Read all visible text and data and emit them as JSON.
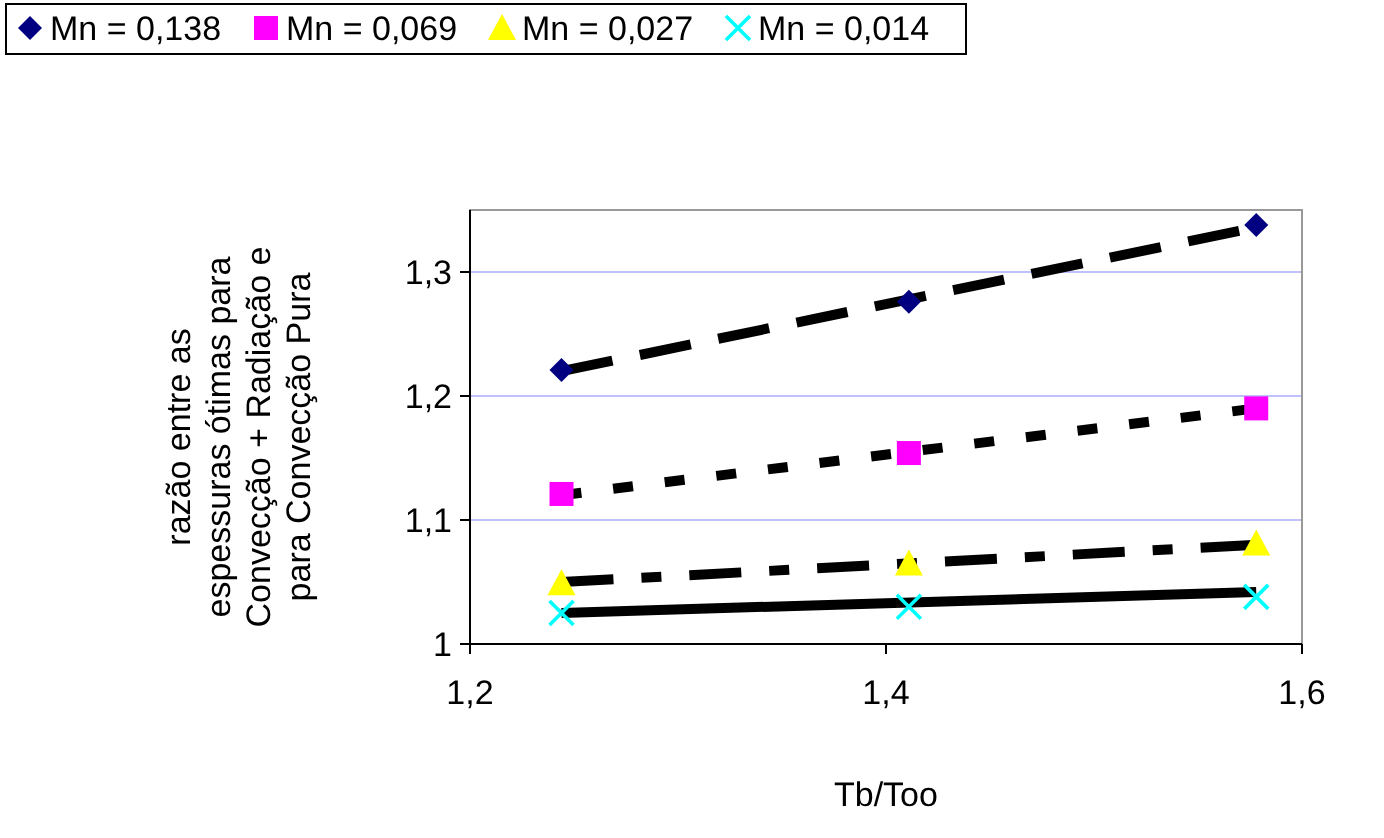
{
  "chart_data": {
    "type": "scatter",
    "xlabel": "Tb/Too",
    "ylabel": "razão entre as\nespessuras ótimas para\nConvecção + Radiação e\npara Convecção Pura",
    "xlim": [
      1.2,
      1.6
    ],
    "ylim": [
      1,
      1.35
    ],
    "xticks": [
      {
        "value": 1.2,
        "label": "1,2"
      },
      {
        "value": 1.4,
        "label": "1,4"
      },
      {
        "value": 1.6,
        "label": "1,6"
      }
    ],
    "yticks": [
      {
        "value": 1,
        "label": "1"
      },
      {
        "value": 1.1,
        "label": "1,1"
      },
      {
        "value": 1.2,
        "label": "1,2"
      },
      {
        "value": 1.3,
        "label": "1,3"
      }
    ],
    "grid": "y",
    "legend": "top",
    "series": [
      {
        "name": "Mn = 0,138",
        "color": "#000080",
        "marker": "diamond",
        "x": [
          1.244,
          1.411,
          1.578
        ],
        "values": [
          1.221,
          1.276,
          1.338
        ]
      },
      {
        "name": "Mn = 0,069",
        "color": "#ff00ff",
        "marker": "square",
        "x": [
          1.244,
          1.411,
          1.578
        ],
        "values": [
          1.121,
          1.154,
          1.19
        ]
      },
      {
        "name": "Mn = 0,027",
        "color": "#ffff00",
        "marker": "triangle",
        "x": [
          1.244,
          1.411,
          1.578
        ],
        "values": [
          1.049,
          1.065,
          1.081
        ]
      },
      {
        "name": "Mn = 0,014",
        "color": "#00ffff",
        "marker": "cross",
        "x": [
          1.244,
          1.411,
          1.578
        ],
        "values": [
          1.025,
          1.03,
          1.038
        ]
      },
      {
        "type": "line",
        "color": "#000000",
        "line_style": "dashed",
        "x": [
          1.244,
          1.578
        ],
        "values": [
          1.22,
          1.336
        ]
      },
      {
        "type": "line",
        "color": "#000000",
        "line_style": "dotted",
        "x": [
          1.244,
          1.578
        ],
        "values": [
          1.12,
          1.19
        ]
      },
      {
        "type": "line",
        "color": "#000000",
        "line_style": "dashdot",
        "x": [
          1.244,
          1.578
        ],
        "values": [
          1.05,
          1.08
        ]
      },
      {
        "type": "line",
        "color": "#000000",
        "line_style": "solid",
        "x": [
          1.244,
          1.578
        ],
        "values": [
          1.025,
          1.042
        ]
      }
    ]
  }
}
